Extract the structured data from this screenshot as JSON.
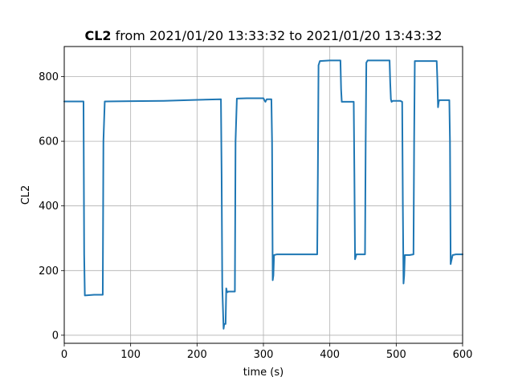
{
  "chart_data": {
    "type": "line",
    "title": {
      "bold": "CL2",
      "rest": " from 2021/01/20 13:33:32 to 2021/01/20 13:43:32"
    },
    "xlabel": "time (s)",
    "ylabel": "CL2",
    "xlim": [
      0,
      600
    ],
    "ylim": [
      -25,
      893
    ],
    "xticks": [
      0,
      100,
      200,
      300,
      400,
      500,
      600
    ],
    "yticks": [
      0,
      200,
      400,
      600,
      800
    ],
    "grid": true,
    "series_color": "#1f77b4",
    "series": [
      {
        "x": [
          0,
          29,
          30,
          31,
          45,
          58,
          59,
          61,
          100,
          150,
          200,
          236,
          237,
          238,
          240,
          241,
          243,
          244,
          245,
          246,
          247,
          257,
          258,
          260,
          275,
          300,
          302,
          303,
          305,
          312,
          313,
          314,
          315,
          316,
          320,
          350,
          381,
          382,
          383,
          385,
          400,
          416,
          417,
          418,
          430,
          436,
          437,
          438,
          440,
          450,
          453,
          454,
          455,
          457,
          470,
          490,
          491,
          492,
          493,
          495,
          506,
          509,
          510,
          511,
          512,
          513,
          520,
          526,
          527,
          528,
          540,
          561,
          562,
          563,
          564,
          565,
          570,
          580,
          581,
          582,
          583,
          585,
          590,
          600
        ],
        "y": [
          723,
          723,
          250,
          123,
          125,
          125,
          600,
          723,
          724,
          725,
          728,
          730,
          500,
          150,
          20,
          35,
          35,
          145,
          135,
          133,
          135,
          135,
          600,
          732,
          733,
          733,
          725,
          722,
          730,
          730,
          600,
          170,
          185,
          248,
          250,
          250,
          250,
          500,
          835,
          848,
          850,
          850,
          760,
          722,
          722,
          722,
          500,
          235,
          250,
          250,
          250,
          600,
          843,
          850,
          850,
          850,
          780,
          730,
          722,
          725,
          725,
          722,
          400,
          160,
          185,
          248,
          248,
          250,
          600,
          848,
          848,
          848,
          790,
          705,
          722,
          727,
          727,
          727,
          600,
          220,
          230,
          248,
          250,
          250
        ]
      }
    ]
  }
}
